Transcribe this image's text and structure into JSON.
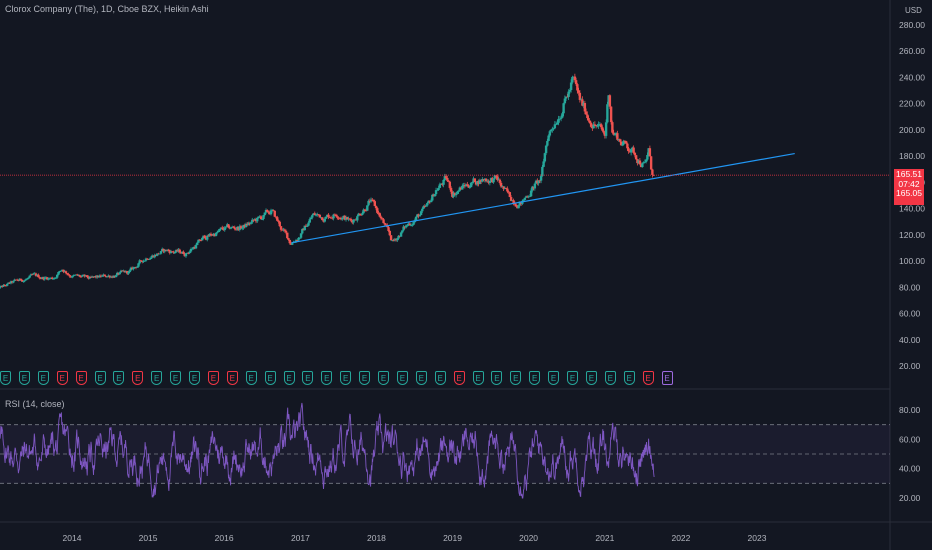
{
  "header": {
    "title": "Clorox Company (The), 1D, Cboe BZX, Heikin Ashi",
    "currency": "USD"
  },
  "price_label": {
    "last": "165.51",
    "countdown": "07:42",
    "prev": "165.05"
  },
  "rsi_title": "RSI (14, close)",
  "earnings_badges": [
    {
      "label": "E",
      "type": "beat"
    },
    {
      "label": "E",
      "type": "beat"
    },
    {
      "label": "E",
      "type": "beat"
    },
    {
      "label": "E",
      "type": "miss"
    },
    {
      "label": "E",
      "type": "miss"
    },
    {
      "label": "E",
      "type": "beat"
    },
    {
      "label": "E",
      "type": "beat"
    },
    {
      "label": "E",
      "type": "miss"
    },
    {
      "label": "E",
      "type": "beat"
    },
    {
      "label": "E",
      "type": "beat"
    },
    {
      "label": "E",
      "type": "beat"
    },
    {
      "label": "E",
      "type": "miss"
    },
    {
      "label": "E",
      "type": "miss"
    },
    {
      "label": "E",
      "type": "beat"
    },
    {
      "label": "E",
      "type": "beat"
    },
    {
      "label": "E",
      "type": "beat"
    },
    {
      "label": "E",
      "type": "beat"
    },
    {
      "label": "E",
      "type": "beat"
    },
    {
      "label": "E",
      "type": "beat"
    },
    {
      "label": "E",
      "type": "beat"
    },
    {
      "label": "E",
      "type": "beat"
    },
    {
      "label": "E",
      "type": "beat"
    },
    {
      "label": "E",
      "type": "beat"
    },
    {
      "label": "E",
      "type": "beat"
    },
    {
      "label": "E",
      "type": "miss"
    },
    {
      "label": "E",
      "type": "beat"
    },
    {
      "label": "E",
      "type": "beat"
    },
    {
      "label": "E",
      "type": "beat"
    },
    {
      "label": "E",
      "type": "beat"
    },
    {
      "label": "E",
      "type": "beat"
    },
    {
      "label": "E",
      "type": "beat"
    },
    {
      "label": "E",
      "type": "beat"
    },
    {
      "label": "E",
      "type": "beat"
    },
    {
      "label": "E",
      "type": "beat"
    },
    {
      "label": "E",
      "type": "miss"
    },
    {
      "label": "E",
      "type": "future"
    }
  ],
  "colors": {
    "background": "#131722",
    "up": "#26a69a",
    "down": "#ef5350",
    "trendline": "#2196f3",
    "rsi_line": "#7e57c2",
    "rsi_band": "#7e57c2",
    "last_price_line": "#f23645"
  },
  "chart_data": [
    {
      "type": "candlestick",
      "style": "Heikin Ashi",
      "x_axis": {
        "type": "time",
        "range": [
          "2013-01-01",
          "2024-01-01"
        ],
        "ticks": [
          "2014",
          "2015",
          "2016",
          "2017",
          "2018",
          "2019",
          "2020",
          "2021",
          "2022",
          "2023"
        ]
      },
      "y_axis": {
        "range": [
          10,
          290
        ],
        "ticks": [
          "20.00",
          "40.00",
          "60.00",
          "80.00",
          "100.00",
          "120.00",
          "140.00",
          "160.00",
          "180.00",
          "200.00",
          "220.00",
          "240.00",
          "260.00",
          "280.00"
        ]
      },
      "price_path": [
        [
          "2013-01-01",
          78
        ],
        [
          "2013-04-01",
          84
        ],
        [
          "2013-07-01",
          88
        ],
        [
          "2013-10-01",
          87
        ],
        [
          "2013-11-15",
          94
        ],
        [
          "2014-01-01",
          89
        ],
        [
          "2014-04-01",
          86
        ],
        [
          "2014-07-01",
          89
        ],
        [
          "2014-10-01",
          91
        ],
        [
          "2015-01-01",
          104
        ],
        [
          "2015-04-01",
          108
        ],
        [
          "2015-07-01",
          106
        ],
        [
          "2015-10-01",
          118
        ],
        [
          "2016-01-01",
          124
        ],
        [
          "2016-04-01",
          126
        ],
        [
          "2016-07-01",
          133
        ],
        [
          "2016-08-15",
          138
        ],
        [
          "2016-10-01",
          125
        ],
        [
          "2016-11-15",
          114
        ],
        [
          "2017-01-01",
          120
        ],
        [
          "2017-03-01",
          135
        ],
        [
          "2017-05-01",
          134
        ],
        [
          "2017-07-01",
          137
        ],
        [
          "2017-09-01",
          130
        ],
        [
          "2017-12-01",
          146
        ],
        [
          "2018-01-15",
          135
        ],
        [
          "2018-03-01",
          120
        ],
        [
          "2018-03-20",
          114
        ],
        [
          "2018-05-15",
          125
        ],
        [
          "2018-07-01",
          132
        ],
        [
          "2018-09-01",
          140
        ],
        [
          "2018-10-15",
          155
        ],
        [
          "2018-12-01",
          162
        ],
        [
          "2019-01-01",
          152
        ],
        [
          "2019-04-01",
          160
        ],
        [
          "2019-06-01",
          163
        ],
        [
          "2019-08-01",
          162
        ],
        [
          "2019-10-01",
          148
        ],
        [
          "2019-12-01",
          145
        ],
        [
          "2020-01-15",
          155
        ],
        [
          "2020-03-01",
          162
        ],
        [
          "2020-04-01",
          195
        ],
        [
          "2020-05-15",
          210
        ],
        [
          "2020-07-15",
          230
        ],
        [
          "2020-08-01",
          238
        ],
        [
          "2020-09-01",
          222
        ],
        [
          "2020-10-15",
          210
        ],
        [
          "2020-12-01",
          202
        ],
        [
          "2021-01-01",
          195
        ],
        [
          "2021-01-20",
          231
        ],
        [
          "2021-02-05",
          200
        ],
        [
          "2021-03-15",
          192
        ],
        [
          "2021-05-01",
          186
        ],
        [
          "2021-06-15",
          178
        ],
        [
          "2021-07-15",
          173
        ],
        [
          "2021-07-30",
          185
        ],
        [
          "2021-08-10",
          170
        ],
        [
          "2021-08-25",
          165
        ]
      ],
      "trendline": {
        "from": [
          "2016-11-20",
          114
        ],
        "to": [
          "2023-07-01",
          182
        ]
      },
      "last_price": 165.51,
      "last_price_countdown": "07:42",
      "prev_close": 165.05
    },
    {
      "type": "line",
      "name": "RSI (14, close)",
      "y_axis": {
        "range": [
          10,
          92
        ],
        "ticks": [
          "20.00",
          "40.00",
          "60.00",
          "80.00"
        ]
      },
      "bands": {
        "upper": 70,
        "middle": 50,
        "lower": 30
      },
      "typical_range": [
        20,
        88
      ]
    }
  ]
}
